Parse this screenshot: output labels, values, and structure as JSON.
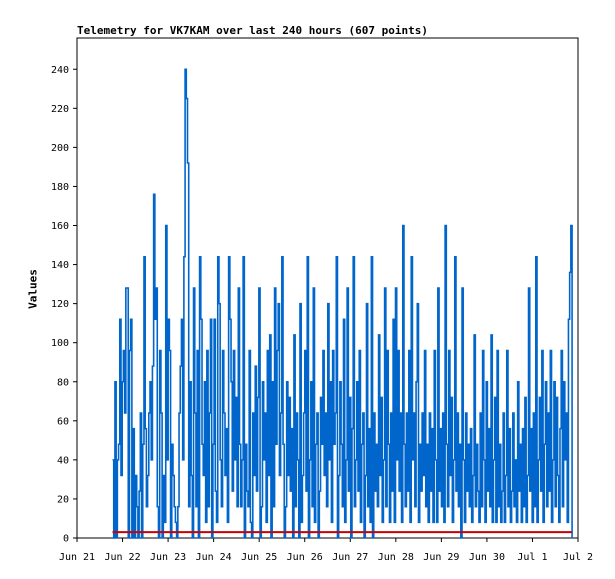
{
  "chart_data": {
    "type": "line",
    "title": "Telemetry for VK7KAM over last 240 hours (607 points)",
    "ylabel": "Values",
    "xlabel": "",
    "ylim": [
      0,
      256
    ],
    "yticks": [
      0,
      20,
      40,
      60,
      80,
      100,
      120,
      140,
      160,
      180,
      200,
      220,
      240
    ],
    "xlim": [
      0,
      11
    ],
    "xtick_labels": [
      "Jun 21",
      "Jun 22",
      "Jun 23",
      "Jun 24",
      "Jun 25",
      "Jun 26",
      "Jun 27",
      "Jun 28",
      "Jun 29",
      "Jun 30",
      "Jul 1",
      "Jul 2"
    ],
    "grid": false,
    "colors": {
      "series_main": "#0066cc",
      "series_baseline": "#cc0000"
    },
    "series": [
      {
        "color": "#0066cc",
        "x_range": [
          0.78,
          10.87
        ],
        "values": [
          40,
          0,
          80,
          0,
          40,
          48,
          112,
          32,
          80,
          96,
          64,
          128,
          128,
          0,
          96,
          112,
          0,
          56,
          0,
          32,
          16,
          0,
          24,
          64,
          0,
          48,
          144,
          56,
          16,
          32,
          64,
          80,
          40,
          88,
          176,
          112,
          128,
          16,
          0,
          96,
          64,
          0,
          32,
          8,
          160,
          40,
          112,
          96,
          0,
          48,
          32,
          16,
          8,
          0,
          16,
          64,
          88,
          112,
          40,
          144,
          240,
          225,
          192,
          16,
          80,
          32,
          0,
          128,
          64,
          16,
          96,
          0,
          144,
          112,
          48,
          32,
          80,
          8,
          96,
          16,
          64,
          112,
          0,
          48,
          112,
          24,
          8,
          144,
          120,
          40,
          16,
          96,
          64,
          32,
          56,
          8,
          144,
          112,
          80,
          24,
          96,
          40,
          72,
          16,
          128,
          48,
          16,
          40,
          144,
          0,
          48,
          24,
          16,
          96,
          8,
          0,
          64,
          32,
          88,
          24,
          72,
          128,
          0,
          16,
          80,
          40,
          64,
          8,
          96,
          32,
          104,
          0,
          80,
          16,
          128,
          48,
          96,
          120,
          32,
          64,
          144,
          48,
          0,
          16,
          80,
          32,
          72,
          24,
          56,
          0,
          104,
          16,
          64,
          40,
          0,
          120,
          8,
          32,
          64,
          96,
          24,
          144,
          0,
          40,
          80,
          16,
          128,
          8,
          48,
          64,
          0,
          24,
          72,
          48,
          96,
          32,
          64,
          16,
          120,
          40,
          80,
          8,
          96,
          48,
          64,
          144,
          0,
          32,
          80,
          48,
          16,
          112,
          8,
          40,
          128,
          24,
          72,
          0,
          56,
          144,
          16,
          40,
          80,
          24,
          96,
          8,
          48,
          64,
          0,
          32,
          120,
          16,
          56,
          8,
          144,
          0,
          64,
          24,
          48,
          16,
          104,
          32,
          72,
          8,
          40,
          128,
          16,
          96,
          48,
          8,
          64,
          24,
          112,
          8,
          128,
          40,
          96,
          24,
          64,
          8,
          160,
          48,
          16,
          64,
          24,
          96,
          8,
          144,
          40,
          64,
          16,
          80,
          120,
          8,
          48,
          24,
          64,
          32,
          96,
          16,
          48,
          8,
          64,
          24,
          56,
          8,
          96,
          40,
          8,
          128,
          24,
          56,
          16,
          64,
          8,
          160,
          48,
          16,
          96,
          32,
          72,
          8,
          40,
          144,
          24,
          64,
          16,
          48,
          0,
          128,
          40,
          8,
          64,
          24,
          48,
          16,
          56,
          8,
          32,
          104,
          16,
          48,
          24,
          8,
          64,
          16,
          96,
          40,
          8,
          80,
          24,
          56,
          16,
          104,
          8,
          40,
          72,
          8,
          96,
          16,
          48,
          8,
          24,
          64,
          8,
          32,
          96,
          16,
          56,
          8,
          24,
          64,
          16,
          40,
          8,
          80,
          24,
          48,
          8,
          56,
          16,
          72,
          8,
          32,
          128,
          24,
          56,
          8,
          64,
          16,
          144,
          8,
          40,
          72,
          24,
          96,
          8,
          48,
          80,
          16,
          64,
          24,
          96,
          8,
          40,
          80,
          16,
          72,
          32,
          8,
          56,
          96,
          16,
          80,
          40,
          64,
          8,
          112,
          136,
          160,
          0
        ]
      },
      {
        "color": "#cc0000",
        "x_range": [
          0.78,
          10.87
        ],
        "values": [
          3,
          3
        ]
      }
    ]
  }
}
